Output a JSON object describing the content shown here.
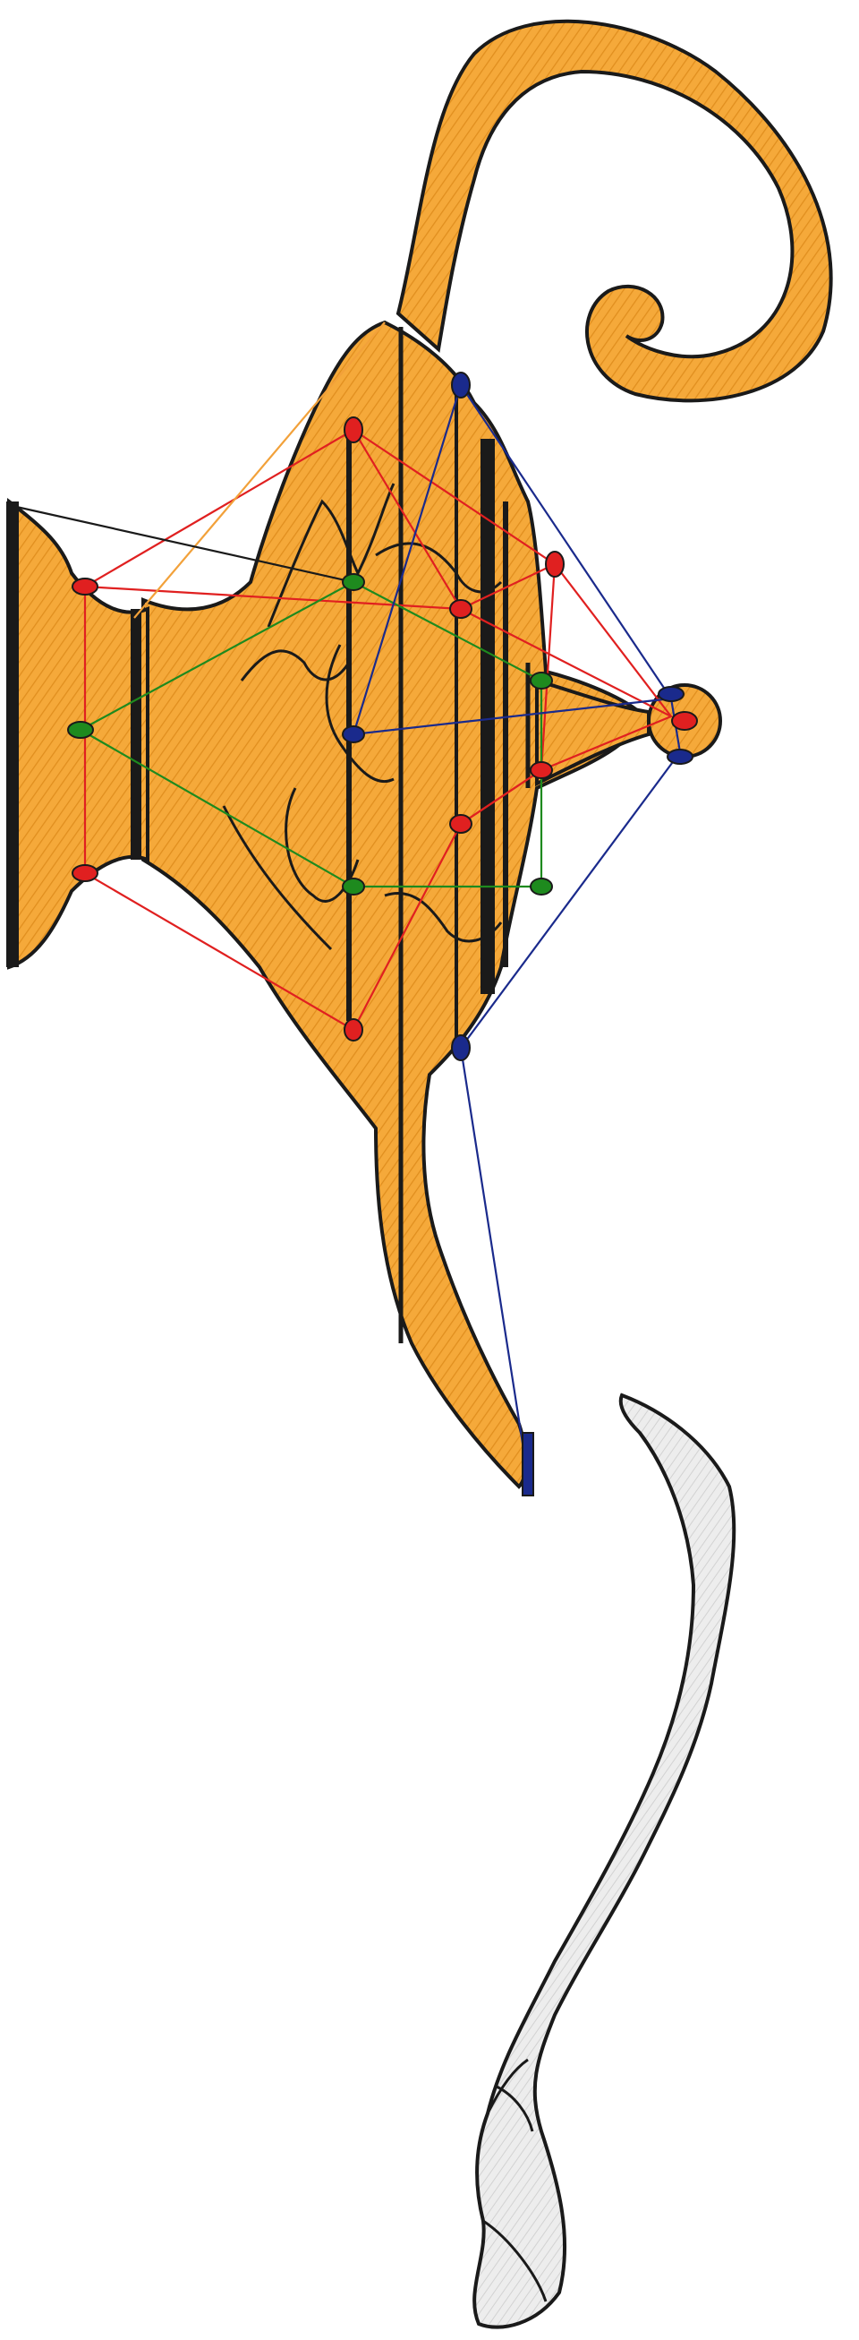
{
  "illustration": {
    "subject": "magic-lamp-with-smoke",
    "colors": {
      "lamp_fill": "#F5A93A",
      "lamp_hatch": "#E08E1E",
      "outline": "#1a1a1a",
      "smoke_fill": "#E9E9E9",
      "smoke_hatch": "#CFCFCF",
      "red": "#E02020",
      "green": "#1E8A1E",
      "blue": "#1A2A8C",
      "orange_line": "#F2A13A"
    }
  }
}
